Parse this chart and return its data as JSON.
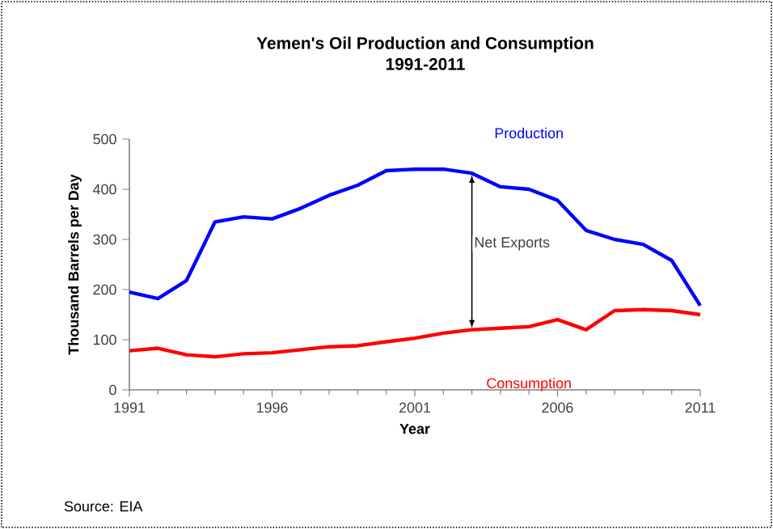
{
  "chart_data": {
    "type": "line",
    "title": "Yemen's Oil Production and Consumption\n1991-2011",
    "xlabel": "Year",
    "ylabel": "Thousand Barrels per Day",
    "x": [
      1991,
      1992,
      1993,
      1994,
      1995,
      1996,
      1997,
      1998,
      1999,
      2000,
      2001,
      2002,
      2003,
      2004,
      2005,
      2006,
      2007,
      2008,
      2009,
      2010,
      2011
    ],
    "series": [
      {
        "name": "Production",
        "color": "#0000ff",
        "values": [
          195,
          182,
          218,
          335,
          345,
          341,
          362,
          388,
          408,
          437,
          440,
          440,
          432,
          405,
          400,
          378,
          318,
          300,
          290,
          258,
          168
        ]
      },
      {
        "name": "Consumption",
        "color": "#ff0000",
        "values": [
          78,
          83,
          70,
          66,
          72,
          74,
          80,
          86,
          88,
          96,
          103,
          113,
          120,
          123,
          126,
          140,
          120,
          158,
          160,
          158,
          150
        ]
      }
    ],
    "xlim": [
      1991,
      2011
    ],
    "xticks": [
      1991,
      1996,
      2001,
      2006,
      2011
    ],
    "ylim": [
      0,
      500
    ],
    "yticks": [
      0,
      100,
      200,
      300,
      400,
      500
    ],
    "grid": false,
    "marker": "none",
    "line_style": "solid",
    "annotations": [
      "Net Exports",
      "Source: EIA"
    ]
  }
}
